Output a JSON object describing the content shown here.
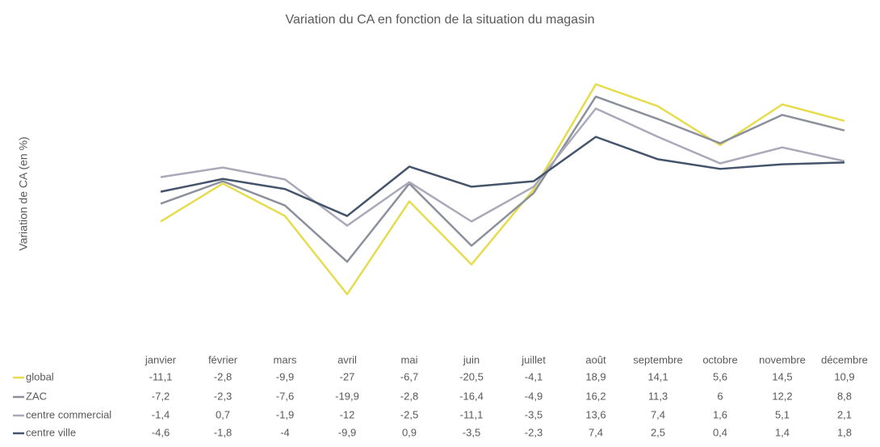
{
  "chart_data": {
    "type": "line",
    "title": "Variation du CA en fonction de la situation du magasin",
    "y_label": "Variation de CA (en %)",
    "categories": [
      "janvier",
      "février",
      "mars",
      "avril",
      "mai",
      "juin",
      "juillet",
      "août",
      "septembre",
      "octobre",
      "novembre",
      "décembre"
    ],
    "ylim": [
      -35,
      30
    ],
    "series": [
      {
        "name": "global",
        "color": "#e6dc4e",
        "values": [
          -11.1,
          -2.8,
          -9.9,
          -27,
          -6.7,
          -20.5,
          -4.1,
          18.9,
          14.1,
          5.6,
          14.5,
          10.9
        ],
        "value_labels": [
          "-11,1",
          "-2,8",
          "-9,9",
          "-27",
          "-6,7",
          "-20,5",
          "-4,1",
          "18,9",
          "14,1",
          "5,6",
          "14,5",
          "10,9"
        ]
      },
      {
        "name": "ZAC",
        "color": "#8c909c",
        "values": [
          -7.2,
          -2.3,
          -7.6,
          -19.9,
          -2.8,
          -16.4,
          -4.9,
          16.2,
          11.3,
          6,
          12.2,
          8.8
        ],
        "value_labels": [
          "-7,2",
          "-2,3",
          "-7,6",
          "-19,9",
          "-2,8",
          "-16,4",
          "-4,9",
          "16,2",
          "11,3",
          "6",
          "12,2",
          "8,8"
        ]
      },
      {
        "name": "centre commercial",
        "color": "#a9a9ba",
        "values": [
          -1.4,
          0.7,
          -1.9,
          -12,
          -2.5,
          -11.1,
          -3.5,
          13.6,
          7.4,
          1.6,
          5.1,
          2.1
        ],
        "value_labels": [
          "-1,4",
          "0,7",
          "-1,9",
          "-12",
          "-2,5",
          "-11,1",
          "-3,5",
          "13,6",
          "7,4",
          "1,6",
          "5,1",
          "2,1"
        ]
      },
      {
        "name": "centre ville",
        "color": "#44546a",
        "values": [
          -4.6,
          -1.8,
          -4,
          -9.9,
          0.9,
          -3.5,
          -2.3,
          7.4,
          2.5,
          0.4,
          1.4,
          1.8
        ],
        "value_labels": [
          "-4,6",
          "-1,8",
          "-4",
          "-9,9",
          "0,9",
          "-3,5",
          "-2,3",
          "7,4",
          "2,5",
          "0,4",
          "1,4",
          "1,8"
        ]
      }
    ]
  }
}
